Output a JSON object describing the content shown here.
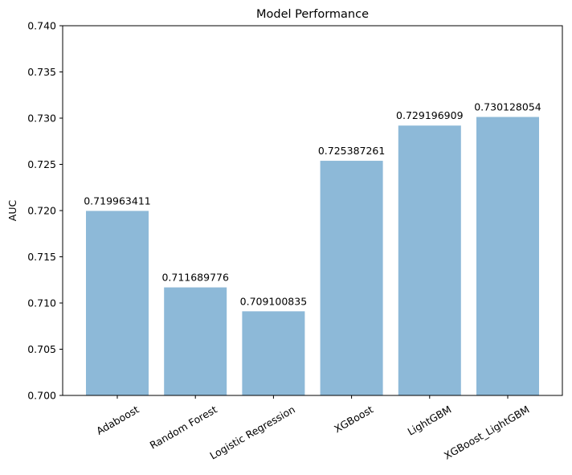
{
  "chart_data": {
    "type": "bar",
    "title": "Model Performance",
    "xlabel": "",
    "ylabel": "AUC",
    "ylim": [
      0.7,
      0.74
    ],
    "yticks": [
      "0.700",
      "0.705",
      "0.710",
      "0.715",
      "0.720",
      "0.725",
      "0.730",
      "0.735",
      "0.740"
    ],
    "categories": [
      "Adaboost",
      "Random Forest",
      "Logistic Regression",
      "XGBoost",
      "LightGBM",
      "XGBoost_LightGBM"
    ],
    "values": [
      0.719963411,
      0.711689776,
      0.709100835,
      0.725387261,
      0.729196909,
      0.730128054
    ],
    "value_labels": [
      "0.719963411",
      "0.711689776",
      "0.709100835",
      "0.725387261",
      "0.729196909",
      "0.730128054"
    ],
    "bar_color": "#8db9d8",
    "grid": false,
    "legend": "none"
  }
}
